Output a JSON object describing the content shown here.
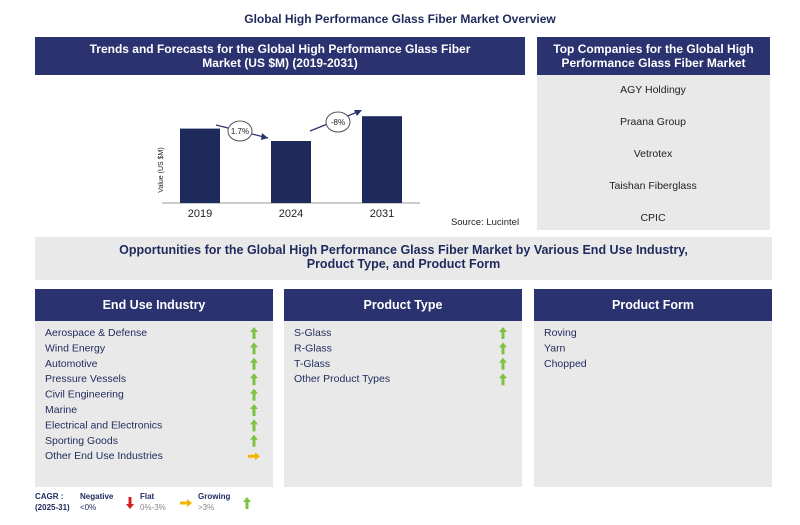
{
  "title": "Global High Performance Glass Fiber Market Overview",
  "chart_data": {
    "type": "bar",
    "title": "Trends and Forecasts for the Global High Performance Glass Fiber Market (US $M) (2019-2031)",
    "ylabel": "Value (US $M)",
    "categories": [
      "2019",
      "2024",
      "2031"
    ],
    "values": [
      72,
      60,
      84
    ],
    "ylim": [
      0,
      90
    ],
    "color": "#1f2a5c",
    "annotations": [
      "1.7%",
      "-8%"
    ],
    "source": "Source: Lucintel"
  },
  "companies": {
    "title": "Top Companies for the Global High Performance Glass Fiber Market",
    "items": [
      "AGY Holdingy",
      "Praana Group",
      "Vetrotex",
      "Taishan Fiberglass",
      "CPIC"
    ]
  },
  "opportunities": {
    "title": "Opportunities for the Global High Performance Glass Fiber Market by Various End Use Industry, Product Type, and Product Form",
    "panels": [
      {
        "title": "End Use Industry",
        "items": [
          {
            "label": "Aerospace & Defense",
            "trend": "growing"
          },
          {
            "label": "Wind Energy",
            "trend": "growing"
          },
          {
            "label": "Automotive",
            "trend": "growing"
          },
          {
            "label": "Pressure Vessels",
            "trend": "growing"
          },
          {
            "label": "Civil Engineering",
            "trend": "growing"
          },
          {
            "label": "Marine",
            "trend": "growing"
          },
          {
            "label": "Electrical and Electronics",
            "trend": "growing"
          },
          {
            "label": "Sporting Goods",
            "trend": "growing"
          },
          {
            "label": "Other End Use Industries",
            "trend": "flat"
          }
        ]
      },
      {
        "title": "Product Type",
        "items": [
          {
            "label": "S-Glass",
            "trend": "growing"
          },
          {
            "label": "R-Glass",
            "trend": "growing"
          },
          {
            "label": "T-Glass",
            "trend": "growing"
          },
          {
            "label": "Other Product Types",
            "trend": "growing"
          }
        ]
      },
      {
        "title": "Product Form",
        "items": [
          {
            "label": "Roving"
          },
          {
            "label": "Yarn"
          },
          {
            "label": "Chopped"
          }
        ]
      }
    ]
  },
  "legend": {
    "cagr": "CAGR :",
    "period": "(2025-31)",
    "items": [
      {
        "name": "Negative",
        "range": "<0%",
        "trend": "negative"
      },
      {
        "name": "Flat",
        "range": "0%-3%",
        "trend": "flat"
      },
      {
        "name": "Growing",
        "range": ">3%",
        "trend": "growing"
      }
    ]
  }
}
